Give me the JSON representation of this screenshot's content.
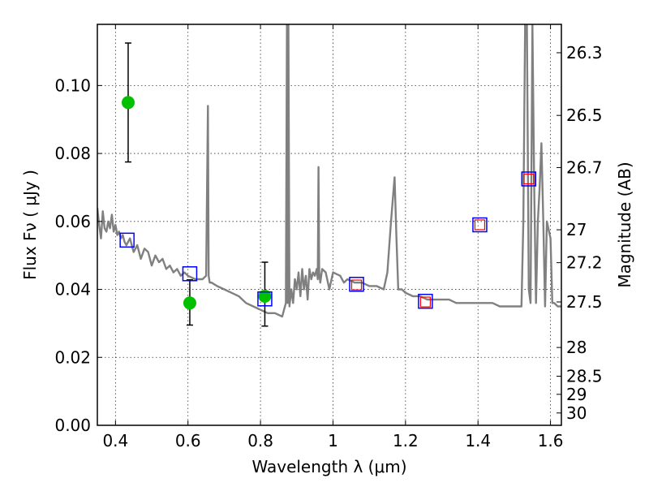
{
  "chart_data": {
    "type": "scatter",
    "title": "",
    "xlabel": "Wavelength  λ (μm)",
    "ylabel": "Flux  Fν  ( μJy )",
    "ylabel_right": "Magnitude (AB)",
    "xlim": [
      0.35,
      1.63
    ],
    "ylim": [
      0.0,
      0.118
    ],
    "grid": true,
    "x_ticks": [
      0.4,
      0.6,
      0.8,
      1.0,
      1.2,
      1.4,
      1.6
    ],
    "x_tick_labels": [
      "0.4",
      "0.6",
      "0.8",
      "1",
      "1.2",
      "1.4",
      "1.6"
    ],
    "y_ticks": [
      0.0,
      0.02,
      0.04,
      0.06,
      0.08,
      0.1
    ],
    "y_tick_labels": [
      "0.00",
      "0.02",
      "0.04",
      "0.06",
      "0.08",
      "0.10"
    ],
    "right_ticks": [
      26.3,
      26.5,
      26.7,
      27,
      27.2,
      27.5,
      28,
      28.5,
      29,
      30
    ],
    "right_tick_labels": [
      "26.3",
      "26.5",
      "26.7",
      "27",
      "27.2",
      "27.5",
      "28",
      "28.5",
      "29",
      "30"
    ],
    "colors": {
      "model": "#808080",
      "observed": "#00c000",
      "errorbar": "#000000",
      "synthetic_blue": "#0000ff",
      "synthetic_red": "#ff0000"
    },
    "series": [
      {
        "kind": "model_sed",
        "x": [
          0.35,
          0.355,
          0.36,
          0.365,
          0.37,
          0.375,
          0.38,
          0.385,
          0.39,
          0.395,
          0.4,
          0.405,
          0.41,
          0.415,
          0.42,
          0.425,
          0.43,
          0.44,
          0.45,
          0.46,
          0.47,
          0.48,
          0.49,
          0.5,
          0.51,
          0.52,
          0.53,
          0.54,
          0.55,
          0.56,
          0.57,
          0.58,
          0.59,
          0.6,
          0.62,
          0.64,
          0.65,
          0.655,
          0.657,
          0.66,
          0.665,
          0.68,
          0.7,
          0.72,
          0.74,
          0.76,
          0.78,
          0.8,
          0.82,
          0.84,
          0.86,
          0.865,
          0.87,
          0.873,
          0.875,
          0.877,
          0.88,
          0.885,
          0.89,
          0.895,
          0.9,
          0.905,
          0.91,
          0.915,
          0.92,
          0.925,
          0.93,
          0.935,
          0.94,
          0.945,
          0.95,
          0.955,
          0.958,
          0.96,
          0.962,
          0.965,
          0.97,
          0.98,
          0.99,
          1.0,
          1.02,
          1.03,
          1.04,
          1.06,
          1.08,
          1.1,
          1.12,
          1.14,
          1.15,
          1.16,
          1.17,
          1.175,
          1.18,
          1.185,
          1.19,
          1.2,
          1.22,
          1.24,
          1.26,
          1.28,
          1.3,
          1.32,
          1.34,
          1.36,
          1.38,
          1.4,
          1.42,
          1.44,
          1.46,
          1.48,
          1.5,
          1.52,
          1.525,
          1.53,
          1.535,
          1.54,
          1.545,
          1.55,
          1.555,
          1.56,
          1.565,
          1.57,
          1.575,
          1.58,
          1.585,
          1.59,
          1.6,
          1.605,
          1.61,
          1.62,
          1.63
        ],
        "y": [
          0.064,
          0.059,
          0.055,
          0.063,
          0.058,
          0.057,
          0.06,
          0.058,
          0.062,
          0.057,
          0.059,
          0.056,
          0.057,
          0.055,
          0.056,
          0.054,
          0.053,
          0.055,
          0.051,
          0.053,
          0.049,
          0.052,
          0.051,
          0.047,
          0.05,
          0.048,
          0.049,
          0.046,
          0.047,
          0.045,
          0.046,
          0.044,
          0.045,
          0.044,
          0.043,
          0.043,
          0.044,
          0.094,
          0.044,
          0.042,
          0.042,
          0.041,
          0.04,
          0.039,
          0.038,
          0.036,
          0.035,
          0.034,
          0.033,
          0.033,
          0.032,
          0.034,
          0.036,
          0.118,
          0.036,
          0.118,
          0.035,
          0.04,
          0.036,
          0.043,
          0.04,
          0.045,
          0.038,
          0.046,
          0.04,
          0.044,
          0.037,
          0.046,
          0.043,
          0.045,
          0.044,
          0.046,
          0.043,
          0.076,
          0.045,
          0.042,
          0.046,
          0.045,
          0.04,
          0.045,
          0.044,
          0.042,
          0.043,
          0.042,
          0.042,
          0.041,
          0.041,
          0.04,
          0.045,
          0.06,
          0.073,
          0.055,
          0.04,
          0.04,
          0.04,
          0.039,
          0.038,
          0.038,
          0.037,
          0.037,
          0.037,
          0.037,
          0.036,
          0.036,
          0.036,
          0.036,
          0.036,
          0.036,
          0.035,
          0.035,
          0.035,
          0.035,
          0.06,
          0.118,
          0.118,
          0.04,
          0.036,
          0.118,
          0.07,
          0.036,
          0.06,
          0.07,
          0.083,
          0.06,
          0.035,
          0.06,
          0.055,
          0.036,
          0.036,
          0.035,
          0.035
        ]
      },
      {
        "kind": "observed",
        "x": [
          0.435,
          0.605,
          0.812
        ],
        "y": [
          0.095,
          0.036,
          0.038
        ],
        "yerr_low": [
          0.0775,
          0.0295,
          0.0292
        ],
        "yerr_high": [
          0.1125,
          0.0428,
          0.048
        ]
      },
      {
        "kind": "synthetic_blue",
        "x": [
          0.432,
          0.605,
          0.812,
          1.065,
          1.255,
          1.405,
          1.54
        ],
        "y": [
          0.0545,
          0.0446,
          0.0372,
          0.0415,
          0.0365,
          0.059,
          0.0725
        ]
      },
      {
        "kind": "synthetic_red",
        "x": [
          1.065,
          1.255,
          1.405,
          1.54
        ],
        "y": [
          0.0413,
          0.0363,
          0.059,
          0.0725
        ]
      }
    ]
  }
}
